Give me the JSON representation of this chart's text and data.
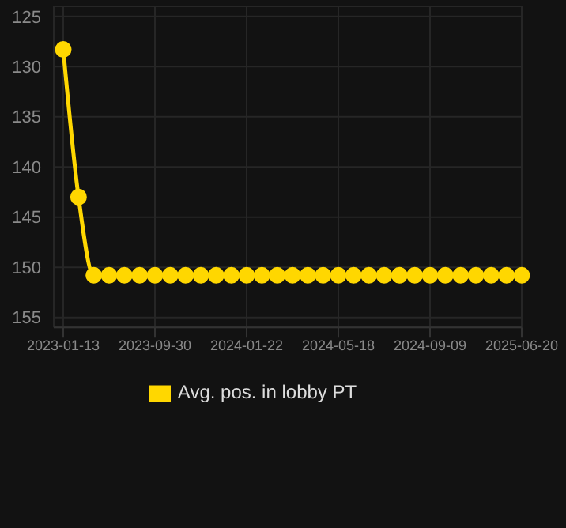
{
  "chart_data": {
    "type": "line",
    "categories": [
      "2023-01-13",
      null,
      null,
      null,
      null,
      null,
      "2023-09-30",
      null,
      null,
      null,
      null,
      null,
      "2024-01-22",
      null,
      null,
      null,
      null,
      null,
      "2024-05-18",
      null,
      null,
      null,
      null,
      null,
      "2024-09-09",
      null,
      null,
      null,
      null,
      null,
      "2025-06-20"
    ],
    "series": [
      {
        "name": "Avg. pos. in lobby PT",
        "color": "#ffd700",
        "values": [
          128.3,
          143,
          150.8,
          150.8,
          150.8,
          150.8,
          150.8,
          150.8,
          150.8,
          150.8,
          150.8,
          150.8,
          150.8,
          150.8,
          150.8,
          150.8,
          150.8,
          150.8,
          150.8,
          150.8,
          150.8,
          150.8,
          150.8,
          150.8,
          150.8,
          150.8,
          150.8,
          150.8,
          150.8,
          150.8,
          150.8
        ]
      }
    ],
    "ylim": [
      156,
      124
    ],
    "yticks": [
      125,
      130,
      135,
      140,
      145,
      150,
      155
    ],
    "grid": true,
    "legend": "bottom",
    "marker": "circle",
    "line_style": "solid"
  }
}
